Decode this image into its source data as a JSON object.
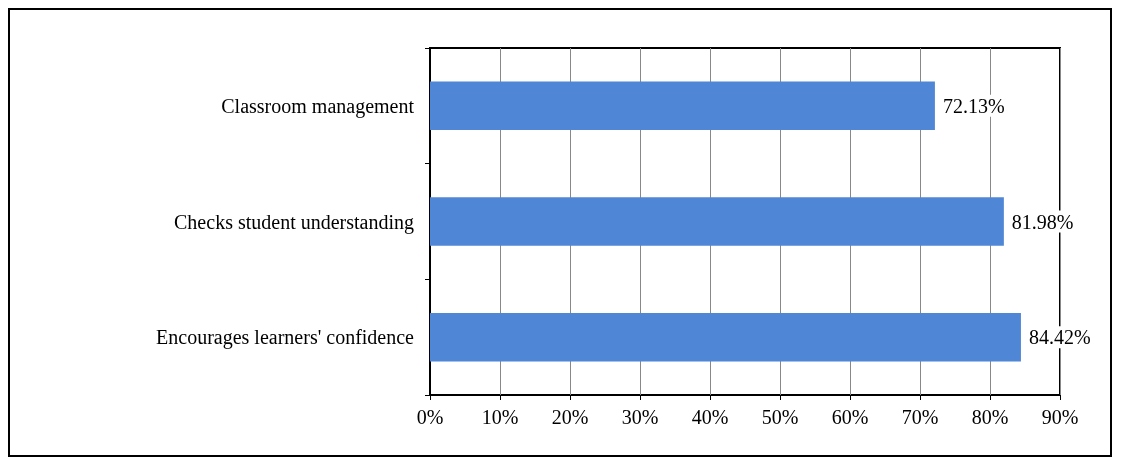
{
  "chart_data": {
    "type": "bar",
    "orientation": "horizontal",
    "categories": [
      "Classroom management",
      "Checks student understanding",
      "Encourages learners' confidence"
    ],
    "values": [
      72.13,
      81.98,
      84.42
    ],
    "value_labels": [
      "72.13%",
      "81.98%",
      "84.42%"
    ],
    "color": "#4f86d6",
    "xlim": [
      0,
      90
    ],
    "xticks": [
      {
        "value": 0,
        "label": "0%"
      },
      {
        "value": 10,
        "label": "10%"
      },
      {
        "value": 20,
        "label": "20%"
      },
      {
        "value": 30,
        "label": "30%"
      },
      {
        "value": 40,
        "label": "40%"
      },
      {
        "value": 50,
        "label": "50%"
      },
      {
        "value": 60,
        "label": "60%"
      },
      {
        "value": 70,
        "label": "70%"
      },
      {
        "value": 80,
        "label": "80%"
      },
      {
        "value": 90,
        "label": "90%"
      }
    ],
    "grid": "x"
  }
}
